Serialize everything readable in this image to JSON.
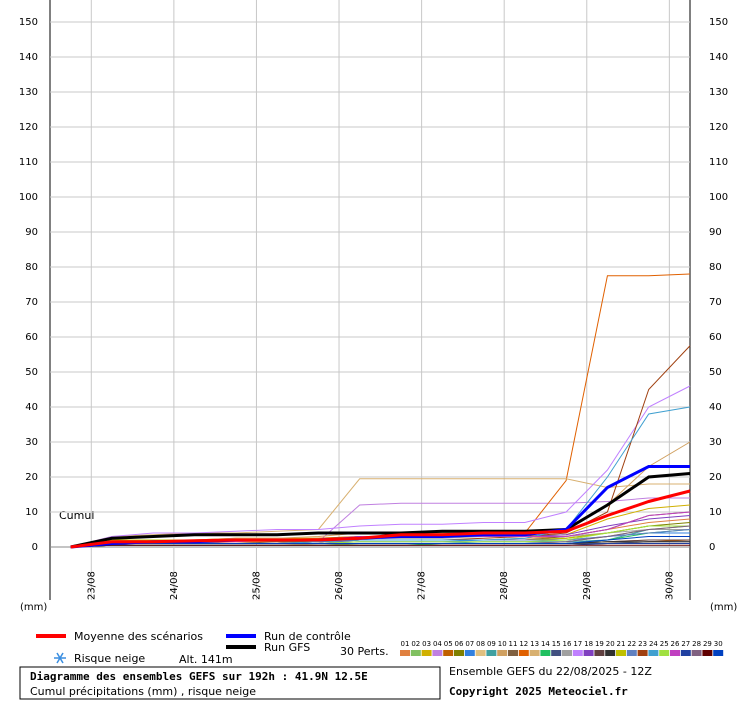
{
  "chart_data": {
    "type": "line",
    "annotation": "Cumul",
    "ylabel": "(mm)",
    "x": [
      6,
      18,
      30,
      42,
      54,
      66,
      78,
      90,
      102,
      114,
      126,
      138,
      150,
      162,
      174,
      186
    ],
    "xlim": [
      0,
      186
    ],
    "xticks": [
      {
        "value": 12,
        "label": "23/08"
      },
      {
        "value": 36,
        "label": "24/08"
      },
      {
        "value": 60,
        "label": "25/08"
      },
      {
        "value": 84,
        "label": "26/08"
      },
      {
        "value": 108,
        "label": "27/08"
      },
      {
        "value": 132,
        "label": "28/08"
      },
      {
        "value": 156,
        "label": "29/08"
      },
      {
        "value": 180,
        "label": "30/08"
      }
    ],
    "ylim": [
      0,
      150
    ],
    "yticks": [
      0,
      10,
      20,
      30,
      40,
      50,
      60,
      70,
      80,
      90,
      100,
      110,
      120,
      130,
      140,
      150
    ],
    "grid": true,
    "series": [
      {
        "name": "Moyenne des scénarios",
        "color": "#ff0000",
        "values": [
          0,
          1.5,
          1.5,
          1.8,
          2,
          2,
          2,
          2.5,
          3.5,
          3.5,
          4,
          4,
          4.5,
          9,
          13,
          16
        ]
      },
      {
        "name": "Run de contrôle",
        "color": "#0000ff",
        "values": [
          0,
          1,
          1.5,
          1.5,
          2,
          2,
          2,
          2.5,
          3,
          3,
          3.5,
          3.5,
          5,
          17,
          23,
          23
        ]
      },
      {
        "name": "Run GFS",
        "color": "#000000",
        "values": [
          0,
          2.5,
          3,
          3.5,
          3.5,
          3.5,
          4,
          4,
          4,
          4.5,
          4.5,
          4.5,
          5,
          12,
          20,
          21
        ]
      }
    ],
    "perturbations": {
      "label": "30 Perts.",
      "series": [
        {
          "name": "01",
          "color": "#e08040",
          "values": [
            0,
            1,
            1,
            1,
            1.5,
            1.5,
            1.5,
            2,
            2,
            2,
            2,
            2.5,
            3,
            5,
            7,
            8
          ]
        },
        {
          "name": "02",
          "color": "#80c060",
          "values": [
            0,
            0.5,
            0.5,
            0.5,
            0.5,
            0.5,
            0.5,
            1,
            1,
            1,
            1,
            1,
            1.5,
            3,
            5,
            6
          ]
        },
        {
          "name": "03",
          "color": "#d0b000",
          "values": [
            0,
            2,
            2,
            2,
            2.5,
            2.5,
            2.5,
            3,
            3,
            3,
            3,
            3,
            3.5,
            8,
            11,
            12
          ]
        },
        {
          "name": "04",
          "color": "#c080e0",
          "values": [
            0,
            1,
            1,
            1,
            1,
            1,
            1.5,
            12,
            12.5,
            12.5,
            12.5,
            12.5,
            12.5,
            13,
            14,
            14
          ]
        },
        {
          "name": "05",
          "color": "#c06000",
          "values": [
            0,
            0.5,
            0.5,
            0.5,
            0.5,
            0.5,
            0.5,
            0.5,
            0.5,
            0.5,
            0.5,
            0.5,
            0.5,
            1,
            1.5,
            2
          ]
        },
        {
          "name": "06",
          "color": "#808000",
          "values": [
            0,
            1,
            1,
            1,
            1,
            1,
            1.5,
            2,
            2,
            2,
            2,
            2,
            2.5,
            4,
            6,
            7
          ]
        },
        {
          "name": "07",
          "color": "#3080e0",
          "values": [
            0,
            1,
            1,
            1,
            1,
            1,
            1,
            1.5,
            1.5,
            1.5,
            2,
            2,
            2,
            3,
            4,
            4
          ]
        },
        {
          "name": "08",
          "color": "#e0c080",
          "values": [
            0,
            0.5,
            0.5,
            0.5,
            0.5,
            0.5,
            1,
            1,
            1,
            1,
            1,
            1,
            1,
            1.5,
            2,
            2
          ]
        },
        {
          "name": "09",
          "color": "#40a0a0",
          "values": [
            0,
            1,
            1,
            1,
            1,
            1,
            1,
            1,
            1,
            1,
            1.5,
            1.5,
            1.5,
            2,
            5,
            5
          ]
        },
        {
          "name": "10",
          "color": "#d0a060",
          "values": [
            0,
            2,
            2,
            2,
            2.5,
            2.5,
            3,
            4,
            4,
            4,
            4,
            4.5,
            5,
            12,
            23,
            30
          ]
        },
        {
          "name": "11",
          "color": "#806040",
          "values": [
            0,
            1,
            1,
            1,
            1,
            1.5,
            1.5,
            2,
            2,
            2,
            2,
            2,
            3,
            5,
            9,
            10
          ]
        },
        {
          "name": "12",
          "color": "#e06000",
          "values": [
            0,
            1,
            1,
            1.5,
            2,
            2,
            2.5,
            3,
            3,
            3,
            3.5,
            4,
            19,
            77.5,
            77.5,
            78
          ]
        },
        {
          "name": "13",
          "color": "#d8b070",
          "values": [
            0,
            3,
            3.5,
            4,
            4,
            4.5,
            5,
            19.5,
            19.5,
            19.5,
            19.5,
            19.5,
            19.5,
            17,
            18,
            18
          ]
        },
        {
          "name": "14",
          "color": "#20c060",
          "values": [
            0,
            0.5,
            0.5,
            0.5,
            0.5,
            0.5,
            0.5,
            0.5,
            0.5,
            1,
            1,
            1,
            1,
            2,
            4,
            5
          ]
        },
        {
          "name": "15",
          "color": "#405080",
          "values": [
            0,
            1,
            1,
            1,
            1,
            1,
            1,
            1,
            1,
            1,
            1,
            1,
            1,
            1,
            1.5,
            1.5
          ]
        },
        {
          "name": "16",
          "color": "#a0a0a0",
          "values": [
            0,
            2,
            2,
            2,
            2,
            2,
            2,
            2.5,
            2.5,
            2.5,
            3,
            3,
            3,
            4,
            5,
            5
          ]
        },
        {
          "name": "17",
          "color": "#c080ff",
          "values": [
            0,
            3,
            4,
            4,
            4.5,
            5,
            5,
            6,
            6.5,
            6.5,
            7,
            7,
            10,
            22,
            40,
            46
          ]
        },
        {
          "name": "18",
          "color": "#8040c0",
          "values": [
            0,
            1.5,
            1.5,
            1.5,
            2,
            2,
            2,
            3,
            3,
            3,
            3,
            3,
            3.5,
            6,
            8,
            9
          ]
        },
        {
          "name": "19",
          "color": "#604040",
          "values": [
            0,
            1,
            1,
            1,
            1,
            1,
            1,
            1,
            1,
            1,
            1,
            1,
            1,
            1.5,
            2,
            2
          ]
        },
        {
          "name": "20",
          "color": "#303030",
          "values": [
            0,
            1,
            1,
            1,
            1,
            1,
            1,
            1,
            1,
            1,
            1,
            1,
            1,
            1.5,
            1.5,
            1.5
          ]
        },
        {
          "name": "21",
          "color": "#c0c000",
          "values": [
            0,
            2,
            2,
            2,
            2,
            2,
            2,
            2,
            2,
            2,
            2,
            2,
            2.5,
            4,
            6,
            6
          ]
        },
        {
          "name": "22",
          "color": "#6080c0",
          "values": [
            0,
            1,
            1,
            1,
            1,
            1,
            1,
            2,
            2,
            2,
            2,
            2,
            2,
            3,
            4,
            5
          ]
        },
        {
          "name": "23",
          "color": "#a04010",
          "values": [
            0,
            1,
            1,
            1,
            1,
            1,
            1.5,
            2,
            2,
            2,
            2.5,
            3,
            4,
            10,
            45,
            57.5
          ]
        },
        {
          "name": "24",
          "color": "#40a0d0",
          "values": [
            0,
            1,
            1,
            1,
            1,
            1,
            1.5,
            2,
            2,
            2,
            2,
            2.5,
            5,
            20,
            38,
            40
          ]
        },
        {
          "name": "25",
          "color": "#a0e040",
          "values": [
            0,
            1,
            1,
            1,
            1,
            1,
            1,
            1.5,
            1.5,
            1.5,
            1.5,
            1.5,
            2,
            4,
            6,
            6
          ]
        },
        {
          "name": "26",
          "color": "#c040c0",
          "values": [
            0,
            1.5,
            1.5,
            1.5,
            1.5,
            2,
            2,
            3,
            3,
            3,
            3,
            3,
            3,
            5,
            9,
            10
          ]
        },
        {
          "name": "27",
          "color": "#2040a0",
          "values": [
            0,
            0.5,
            0.5,
            0.5,
            0.5,
            0.5,
            0.5,
            0.5,
            0.5,
            0.5,
            0.5,
            0.5,
            0.5,
            1,
            1,
            1
          ]
        },
        {
          "name": "28",
          "color": "#806080",
          "values": [
            0,
            1,
            1,
            1,
            1,
            1,
            1,
            1,
            1,
            1,
            1,
            1,
            1.5,
            3,
            5,
            6
          ]
        },
        {
          "name": "29",
          "color": "#600000",
          "values": [
            0,
            0.5,
            0.5,
            0.5,
            0.5,
            0.5,
            0.5,
            0.5,
            0.5,
            0.5,
            0.5,
            0.5,
            0.5,
            0.5,
            0.5,
            0.5
          ]
        },
        {
          "name": "30",
          "color": "#0040c0",
          "values": [
            0,
            1,
            1,
            1,
            1,
            1,
            1,
            1,
            1,
            1,
            1,
            1,
            1,
            2,
            3,
            3
          ]
        }
      ]
    },
    "snow_label": "Risque neige",
    "altitude": "Alt. 141m",
    "info_title": "Diagramme des ensembles GEFS sur 192h : 41.9N 12.5E",
    "info_subtitle": "Cumul précipitations (mm) , risque neige",
    "run_label": "Ensemble GEFS du 22/08/2025 - 12Z",
    "copyright": "Copyright 2025 Meteociel.fr"
  }
}
